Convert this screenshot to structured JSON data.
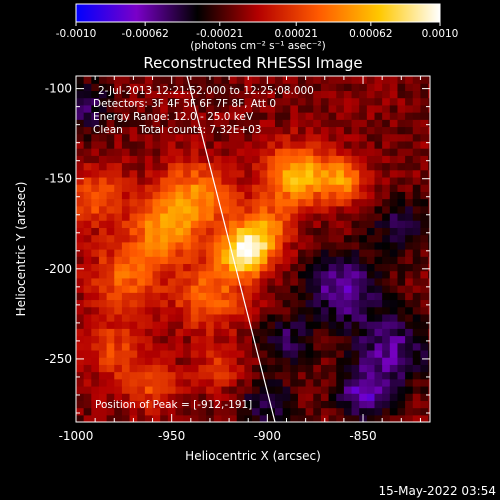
{
  "colorbar": {
    "tick_labels": [
      "-0.0010",
      "-0.00062",
      "-0.00021",
      "0.00021",
      "0.00062",
      "0.0010"
    ],
    "tick_values": [
      -0.001,
      -0.00062,
      -0.00021,
      0.00021,
      0.00062,
      0.001
    ],
    "range": [
      -0.001,
      0.001
    ],
    "units": "(photons cm⁻² s⁻¹ asec⁻²)",
    "stops": [
      "#0000ff",
      "#7a00c8",
      "#000000",
      "#b40000",
      "#ff5a00",
      "#ffc800",
      "#ffffff"
    ]
  },
  "plot": {
    "title": "Reconstructed RHESSI Image",
    "annotation_lines": [
      "2-Jul-2013 12:21:52.000 to 12:25:08.000",
      "Detectors: 3F 4F 5F 6F 7F 8F, Att 0",
      "Energy Range: 12.0 - 25.0 keV",
      "Clean     Total counts: 7.32E+03"
    ],
    "peak_label": "Position of Peak = [-912,-191]"
  },
  "footer": {
    "timestamp": "15-May-2022 03:54"
  },
  "chart_data": {
    "type": "heatmap",
    "title": "Reconstructed RHESSI Image",
    "xlabel": "Heliocentric X (arcsec)",
    "ylabel": "Heliocentric Y (arcsec)",
    "xlim": [
      -1000,
      -815
    ],
    "ylim": [
      -285,
      -93
    ],
    "x_ticks": [
      -1000,
      -950,
      -900,
      -850
    ],
    "x_tick_labels": [
      "-1000",
      "-950",
      "-900",
      "-850"
    ],
    "y_ticks": [
      -100,
      -150,
      -200,
      -250
    ],
    "y_tick_labels": [
      "-100",
      "-150",
      "-200",
      "-250"
    ],
    "value_range": [
      -0.001,
      0.001
    ],
    "peak": [
      -912,
      -191
    ],
    "limb_line": [
      [
        -942,
        -93
      ],
      [
        -896,
        -285
      ]
    ],
    "sources": [
      {
        "x": -912,
        "y": -191,
        "sigma": 9,
        "amp": 1.0
      },
      {
        "x": -902,
        "y": -178,
        "sigma": 10,
        "amp": 0.55
      },
      {
        "x": -885,
        "y": -148,
        "sigma": 12,
        "amp": 0.75
      },
      {
        "x": -860,
        "y": -150,
        "sigma": 9,
        "amp": 0.55
      },
      {
        "x": -938,
        "y": -160,
        "sigma": 14,
        "amp": 0.6
      },
      {
        "x": -955,
        "y": -180,
        "sigma": 12,
        "amp": 0.55
      },
      {
        "x": -930,
        "y": -215,
        "sigma": 13,
        "amp": 0.5
      },
      {
        "x": -975,
        "y": -205,
        "sigma": 13,
        "amp": 0.45
      },
      {
        "x": -990,
        "y": -160,
        "sigma": 12,
        "amp": 0.4
      },
      {
        "x": -980,
        "y": -245,
        "sigma": 12,
        "amp": 0.35
      },
      {
        "x": -960,
        "y": -265,
        "sigma": 10,
        "amp": 0.35
      },
      {
        "x": -925,
        "y": -255,
        "sigma": 9,
        "amp": 0.3
      },
      {
        "x": -890,
        "y": -240,
        "sigma": 10,
        "amp": -0.35
      },
      {
        "x": -860,
        "y": -210,
        "sigma": 14,
        "amp": -0.5
      },
      {
        "x": -835,
        "y": -245,
        "sigma": 14,
        "amp": -0.45
      },
      {
        "x": -850,
        "y": -270,
        "sigma": 10,
        "amp": -0.5
      },
      {
        "x": -900,
        "y": -275,
        "sigma": 10,
        "amp": -0.35
      },
      {
        "x": -995,
        "y": -110,
        "sigma": 10,
        "amp": -0.35
      },
      {
        "x": -830,
        "y": -175,
        "sigma": 11,
        "amp": -0.3
      }
    ],
    "background_level": -0.12,
    "grid": false
  }
}
